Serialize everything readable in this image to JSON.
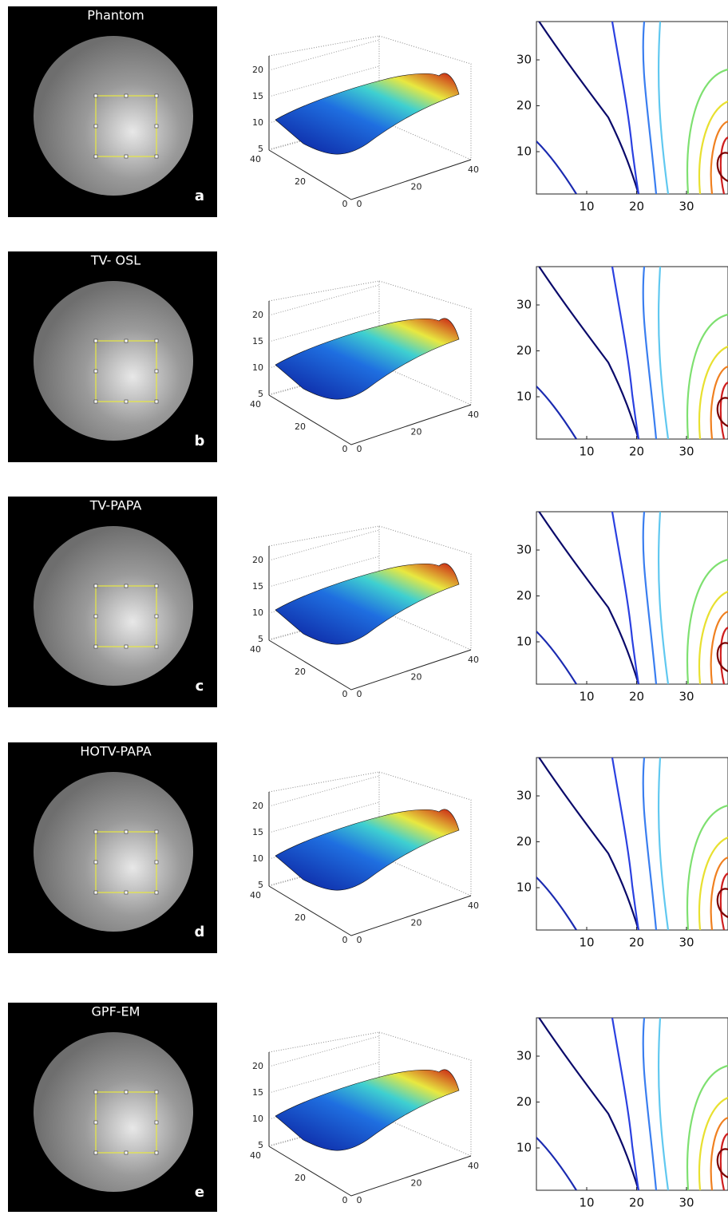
{
  "rows": [
    {
      "title": "Phantom",
      "letter": "a",
      "surface": {
        "zticks": [
          5,
          10,
          15,
          20
        ],
        "left_ticks": [
          0,
          20,
          40
        ],
        "right_ticks": [
          0,
          20,
          40
        ]
      },
      "contour": {
        "yticks": [
          10,
          20,
          30
        ],
        "xticks": [
          10,
          20,
          30
        ]
      }
    },
    {
      "title": "TV- OSL",
      "letter": "b",
      "surface": {
        "zticks": [
          5,
          10,
          15,
          20
        ],
        "left_ticks": [
          0,
          20,
          40
        ],
        "right_ticks": [
          0,
          20,
          40
        ]
      },
      "contour": {
        "yticks": [
          10,
          20,
          30
        ],
        "xticks": [
          10,
          20,
          30
        ]
      }
    },
    {
      "title": "TV-PAPA",
      "letter": "c",
      "surface": {
        "zticks": [
          5,
          10,
          15,
          20
        ],
        "left_ticks": [
          0,
          20,
          40
        ],
        "right_ticks": [
          0,
          20,
          40
        ]
      },
      "contour": {
        "yticks": [
          10,
          20,
          30
        ],
        "xticks": [
          10,
          20,
          30
        ]
      }
    },
    {
      "title": "HOTV-PAPA",
      "letter": "d",
      "surface": {
        "zticks": [
          5,
          10,
          15,
          20
        ],
        "left_ticks": [
          0,
          20,
          40
        ],
        "right_ticks": [
          0,
          20,
          40
        ]
      },
      "contour": {
        "yticks": [
          10,
          20,
          30
        ],
        "xticks": [
          10,
          20,
          30
        ]
      }
    },
    {
      "title": "GPF-EM",
      "letter": "e",
      "surface": {
        "zticks": [
          5,
          10,
          15,
          20
        ],
        "left_ticks": [
          0,
          20,
          40
        ],
        "right_ticks": [
          0,
          20,
          40
        ]
      },
      "contour": {
        "yticks": [
          10,
          20,
          30
        ],
        "xticks": [
          10,
          20,
          30
        ]
      }
    }
  ]
}
